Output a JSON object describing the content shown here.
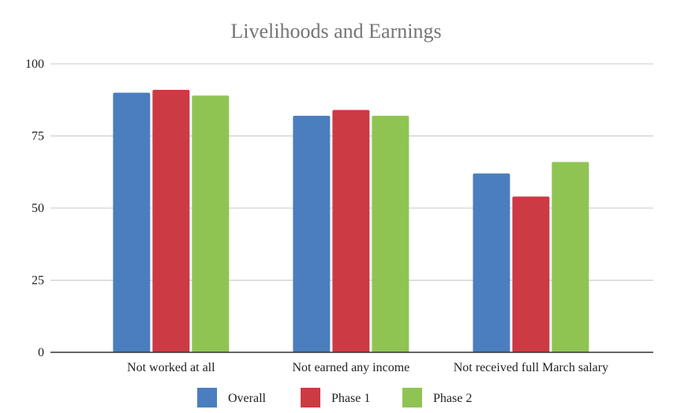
{
  "chart_data": {
    "type": "bar",
    "title": "Livelihoods and Earnings",
    "xlabel": "",
    "ylabel": "",
    "ylim": [
      0,
      100
    ],
    "yticks": [
      0,
      25,
      50,
      75,
      100
    ],
    "grid": true,
    "legend_position": "bottom",
    "categories": [
      "Not worked at all",
      "Not earned any income",
      "Not received full March salary"
    ],
    "series": [
      {
        "name": "Overall",
        "color": "#4a7ebf",
        "values": [
          90,
          82,
          62
        ]
      },
      {
        "name": "Phase 1",
        "color": "#cc3a44",
        "values": [
          91,
          84,
          54
        ]
      },
      {
        "name": "Phase 2",
        "color": "#8fc453",
        "values": [
          89,
          82,
          66
        ]
      }
    ]
  }
}
